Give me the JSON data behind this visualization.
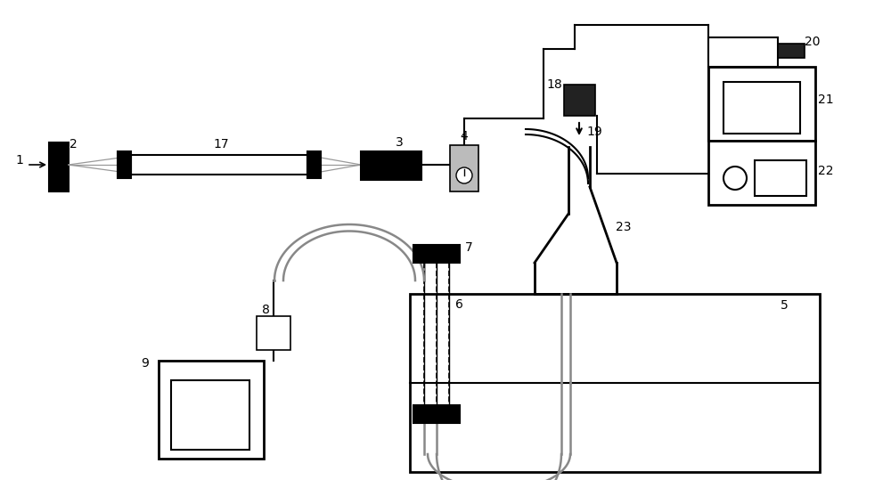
{
  "bg_color": "#ffffff",
  "line_color": "#000000",
  "fig_width": 10.0,
  "fig_height": 5.39,
  "dpi": 100
}
